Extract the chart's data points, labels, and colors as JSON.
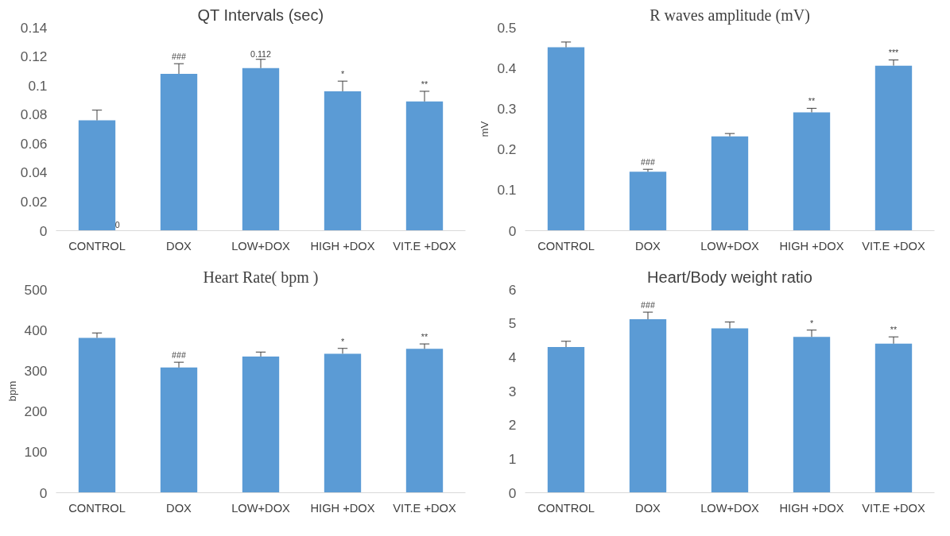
{
  "chart_data": [
    {
      "type": "bar",
      "title": "QT Intervals (sec)",
      "categories": [
        "CONTROL",
        "DOX",
        "LOW+DOX",
        "HIGH +DOX",
        "VIT.E +DOX"
      ],
      "values": [
        0.076,
        0.108,
        0.112,
        0.096,
        0.089
      ],
      "color": "#5b9bd5",
      "errors": [
        [
          0.076,
          0.083
        ],
        [
          0.108,
          0.115
        ],
        [
          0.112,
          0.118
        ],
        [
          0.096,
          0.103
        ],
        [
          0.089,
          0.096
        ]
      ],
      "ylim": [
        0,
        0.14
      ],
      "yticks": [
        0,
        0.02,
        0.04,
        0.06,
        0.08,
        0.1,
        0.12,
        0.14
      ],
      "grid": false,
      "annotations": [
        {
          "text": "0",
          "x": "CONTROL",
          "y": 0
        },
        {
          "text": "###",
          "x": "DOX",
          "y": 0.108
        },
        {
          "text": "0.112",
          "x": "LOW+DOX",
          "y": 0.112
        },
        {
          "text": "*",
          "x": "HIGH +DOX",
          "y": 0.096
        },
        {
          "text": "**",
          "x": "VIT.E +DOX",
          "y": 0.089
        }
      ]
    },
    {
      "type": "bar",
      "title": "R waves amplitude (mV)",
      "ylabel": "mV",
      "categories": [
        "CONTROL",
        "DOX",
        "LOW+DOX",
        "HIGH +DOX",
        "VIT.E +DOX"
      ],
      "values": [
        0.451,
        0.145,
        0.232,
        0.291,
        0.406
      ],
      "color": "#5b9bd5",
      "errors": [
        [
          0.451,
          0.464
        ],
        [
          0.145,
          0.151
        ],
        [
          0.232,
          0.239
        ],
        [
          0.291,
          0.301
        ],
        [
          0.406,
          0.42
        ]
      ],
      "ylim": [
        0,
        0.5
      ],
      "yticks": [
        0,
        0.1,
        0.2,
        0.3,
        0.4,
        0.5
      ],
      "grid": false,
      "annotations": [
        {
          "text": "###",
          "x": "DOX",
          "y": 0.145
        },
        {
          "text": "**",
          "x": "HIGH +DOX",
          "y": 0.291
        },
        {
          "text": "***",
          "x": "VIT.E +DOX",
          "y": 0.406
        }
      ]
    },
    {
      "type": "bar",
      "title": "Heart Rate( bpm )",
      "ylabel": "bpm",
      "categories": [
        "CONTROL",
        "DOX",
        "LOW+DOX",
        "HIGH +DOX",
        "VIT.E +DOX"
      ],
      "values": [
        381,
        308,
        335,
        342,
        354
      ],
      "color": "#5b9bd5",
      "errors": [
        [
          381,
          393
        ],
        [
          308,
          321
        ],
        [
          335,
          346
        ],
        [
          342,
          355
        ],
        [
          354,
          366
        ]
      ],
      "ylim": [
        0,
        500
      ],
      "yticks": [
        0,
        100,
        200,
        300,
        400,
        500
      ],
      "grid": false,
      "annotations": [
        {
          "text": "###",
          "x": "DOX",
          "y": 308
        },
        {
          "text": "*",
          "x": "HIGH +DOX",
          "y": 342
        },
        {
          "text": "**",
          "x": "VIT.E +DOX",
          "y": 354
        }
      ]
    },
    {
      "type": "bar",
      "title": "Heart/Body weight ratio",
      "categories": [
        "CONTROL",
        "DOX",
        "LOW+DOX",
        "HIGH +DOX",
        "VIT.E +DOX"
      ],
      "values": [
        4.3,
        5.12,
        4.85,
        4.6,
        4.4
      ],
      "color": "#5b9bd5",
      "errors": [
        [
          4.3,
          4.47
        ],
        [
          5.12,
          5.33
        ],
        [
          4.85,
          5.04
        ],
        [
          4.6,
          4.8
        ],
        [
          4.4,
          4.6
        ]
      ],
      "ylim": [
        0,
        6
      ],
      "yticks": [
        0,
        1,
        2,
        3,
        4,
        5,
        6
      ],
      "grid": false,
      "annotations": [
        {
          "text": "###",
          "x": "DOX",
          "y": 5.12
        },
        {
          "text": "*",
          "x": "HIGH +DOX",
          "y": 4.6
        },
        {
          "text": "**",
          "x": "VIT.E +DOX",
          "y": 4.4
        }
      ]
    }
  ]
}
